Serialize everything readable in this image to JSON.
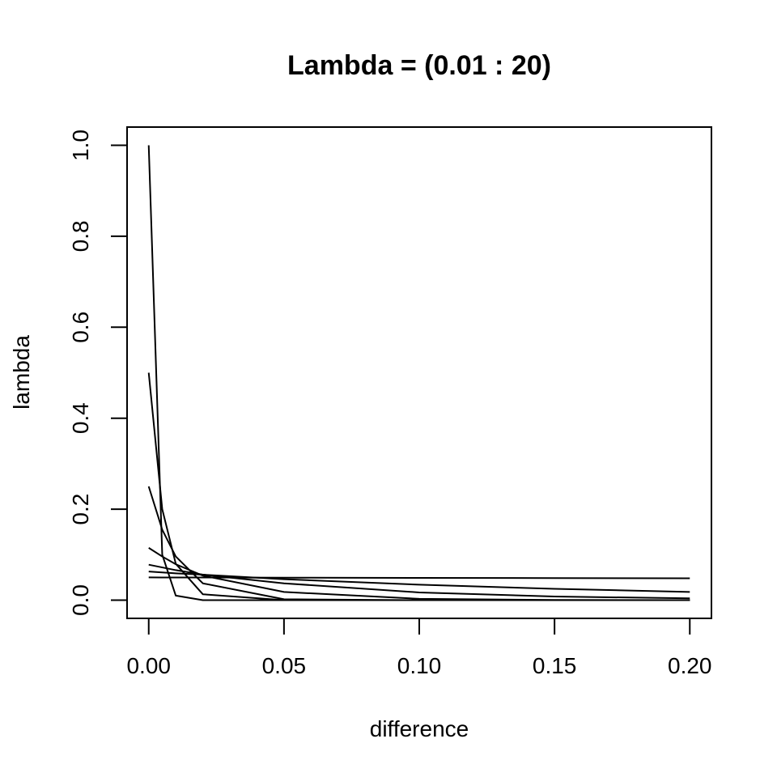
{
  "chart_data": {
    "type": "line",
    "title": "Lambda = (0.01 : 20)",
    "xlabel": "difference",
    "ylabel": "lambda",
    "xlim": [
      -0.008,
      0.208
    ],
    "ylim": [
      -0.04,
      1.04
    ],
    "x_ticks": [
      0.0,
      0.05,
      0.1,
      0.15,
      0.2
    ],
    "x_tick_labels": [
      "0.00",
      "0.05",
      "0.10",
      "0.15",
      "0.20"
    ],
    "y_ticks": [
      0.0,
      0.2,
      0.4,
      0.6,
      0.8,
      1.0
    ],
    "y_tick_labels": [
      "0.0",
      "0.2",
      "0.4",
      "0.6",
      "0.8",
      "1.0"
    ],
    "grid": false,
    "line_color": "#000000",
    "series": [
      {
        "x": [
          0,
          0.005,
          0.01,
          0.02,
          0.05,
          0.1,
          0.15,
          0.2
        ],
        "values": [
          0.05,
          0.0499,
          0.0499,
          0.0498,
          0.0495,
          0.049,
          0.0485,
          0.048
        ]
      },
      {
        "x": [
          0,
          0.005,
          0.01,
          0.02,
          0.05,
          0.1,
          0.15,
          0.2
        ],
        "values": [
          0.063,
          0.061,
          0.059,
          0.056,
          0.046,
          0.034,
          0.025,
          0.018
        ]
      },
      {
        "x": [
          0,
          0.005,
          0.01,
          0.02,
          0.05,
          0.1,
          0.15,
          0.2
        ],
        "values": [
          0.078,
          0.072,
          0.066,
          0.056,
          0.037,
          0.017,
          0.008,
          0.004
        ]
      },
      {
        "x": [
          0,
          0.005,
          0.01,
          0.02,
          0.05,
          0.1,
          0.15,
          0.2
        ],
        "values": [
          0.115,
          0.096,
          0.079,
          0.054,
          0.018,
          0.003,
          0.0005,
          0.0001
        ]
      },
      {
        "x": [
          0,
          0.005,
          0.01,
          0.02,
          0.05,
          0.1,
          0.15,
          0.2
        ],
        "values": [
          0.25,
          0.155,
          0.096,
          0.037,
          0.002,
          0.0,
          0.0,
          0.0
        ]
      },
      {
        "x": [
          0,
          0.005,
          0.01,
          0.02,
          0.05,
          0.1,
          0.15,
          0.2
        ],
        "values": [
          0.5,
          0.2,
          0.08,
          0.013,
          0.0,
          0.0,
          0.0,
          0.0
        ]
      },
      {
        "x": [
          0,
          0.005,
          0.01,
          0.02,
          0.05,
          0.1,
          0.15,
          0.2
        ],
        "values": [
          1.0,
          0.1,
          0.01,
          0.0,
          0.0,
          0.0,
          0.0,
          0.0
        ]
      }
    ]
  }
}
